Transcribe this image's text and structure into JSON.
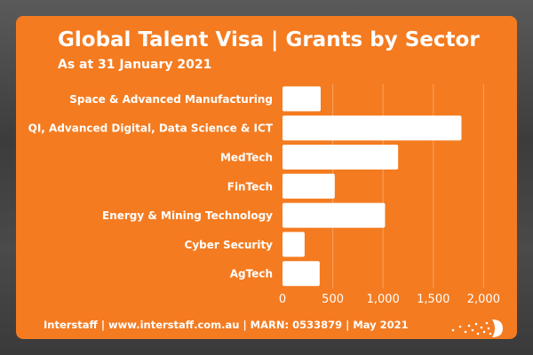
{
  "colors": {
    "card": "#f47b20",
    "bar": "#ffffff",
    "text": "#ffffff"
  },
  "chart_data": {
    "type": "bar",
    "orientation": "horizontal",
    "title": "Global Talent Visa | Grants by Sector",
    "subtitle": "As at 31 January 2021",
    "categories": [
      "Space & Advanced Manufacturing",
      "QI, Advanced Digital, Data Science & ICT",
      "MedTech",
      "FinTech",
      "Energy & Mining Technology",
      "Cyber Security",
      "AgTech"
    ],
    "values": [
      380,
      1780,
      1150,
      520,
      1020,
      220,
      370
    ],
    "xlim": [
      0,
      2200
    ],
    "xticks": [
      0,
      500,
      1000,
      1500,
      2000
    ],
    "xtick_labels": [
      "0",
      "500",
      "1,000",
      "1,500",
      "2,000"
    ],
    "grid": true,
    "xlabel": "",
    "ylabel": ""
  },
  "footer": "Interstaff | www.interstaff.com.au | MARN: 0533879 | May 2021"
}
